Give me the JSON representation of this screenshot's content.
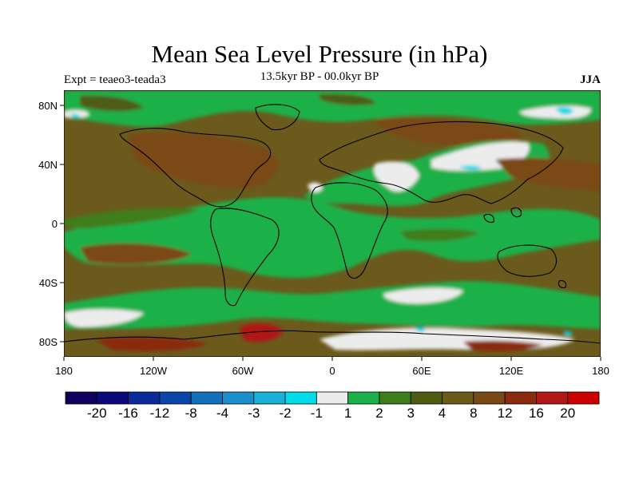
{
  "title": "Mean Sea Level Pressure (in hPa)",
  "experiment": "Expt = teaeo3-teada3",
  "period": "13.5kyr BP - 00.0kyr BP",
  "season": "JJA",
  "colors": {
    "ocean_base": "#6b5a1c",
    "land_base": "#4a6b1a",
    "band1": "#1bb04a",
    "band2": "#3f7d1c",
    "band3": "#4e5c12",
    "band4": "#6b5a1c",
    "band8": "#7a4815",
    "band12": "#8a2a0e",
    "band16": "#b01816",
    "neg_light": "#ececec",
    "neg_cyan": "#00d5e6"
  },
  "map": {
    "lon_ticks": [
      "180",
      "120W",
      "60W",
      "0",
      "60E",
      "120E",
      "180"
    ],
    "lat_ticks": [
      "80N",
      "40N",
      "0",
      "40S",
      "80S"
    ]
  },
  "colorbar": {
    "levels": [
      "-20",
      "-16",
      "-12",
      "-8",
      "-4",
      "-3",
      "-2",
      "-1",
      "1",
      "2",
      "3",
      "4",
      "8",
      "12",
      "16",
      "20"
    ],
    "colors": [
      "#120060",
      "#0a0a7a",
      "#0a2a9a",
      "#0a45a8",
      "#1470b8",
      "#1a8fcb",
      "#18b2d8",
      "#00dde8",
      "#ececec",
      "#1bb04a",
      "#3f7d1c",
      "#4e5c12",
      "#6b5a1c",
      "#7a4815",
      "#8a2a0e",
      "#b01816",
      "#cc0000"
    ]
  }
}
